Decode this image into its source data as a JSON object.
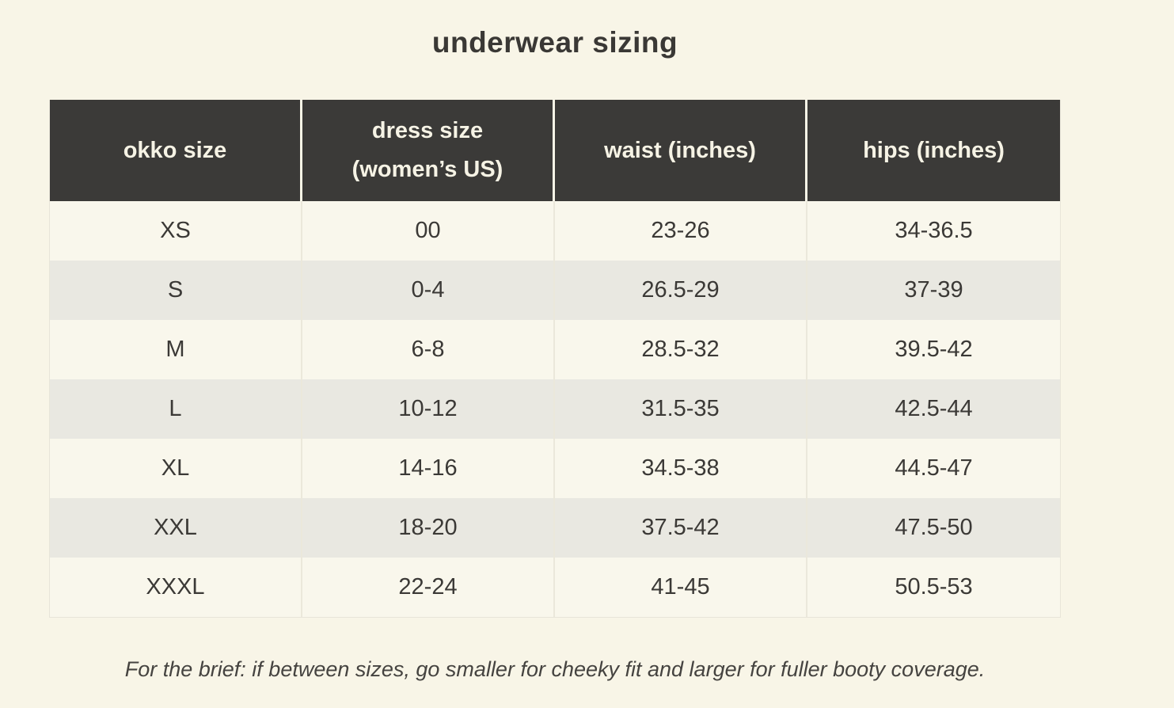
{
  "title": "underwear sizing",
  "footnote": "For the brief: if between sizes, go smaller for cheeky fit and larger for fuller booty coverage.",
  "colors": {
    "page_bg": "#f8f5e7",
    "header_bg": "#3b3a38",
    "header_text": "#f6f3e5",
    "row_light_bg": "#f9f7ec",
    "row_dark_bg": "#e9e8e1",
    "body_text": "#3b3936",
    "separator": "#ebe8db"
  },
  "table": {
    "keys": [
      "okko-size",
      "dress-size",
      "waist",
      "hips"
    ],
    "headers": [
      {
        "label": "okko size",
        "lines": [
          "okko size"
        ]
      },
      {
        "label": "dress size (women’s US)",
        "lines": [
          "dress size",
          "(women’s US)"
        ]
      },
      {
        "label": "waist (inches)",
        "lines": [
          "waist (inches)"
        ]
      },
      {
        "label": "hips (inches)",
        "lines": [
          "hips (inches)"
        ]
      }
    ],
    "rows": [
      [
        "XS",
        "00",
        "23-26",
        "34-36.5"
      ],
      [
        "S",
        "0-4",
        "26.5-29",
        "37-39"
      ],
      [
        "M",
        "6-8",
        "28.5-32",
        "39.5-42"
      ],
      [
        "L",
        "10-12",
        "31.5-35",
        "42.5-44"
      ],
      [
        "XL",
        "14-16",
        "34.5-38",
        "44.5-47"
      ],
      [
        "XXL",
        "18-20",
        "37.5-42",
        "47.5-50"
      ],
      [
        "XXXL",
        "22-24",
        "41-45",
        "50.5-53"
      ]
    ]
  },
  "chart_data": {
    "type": "table",
    "title": "underwear sizing",
    "columns": [
      "okko size",
      "dress size (women’s US)",
      "waist (inches)",
      "hips (inches)"
    ],
    "rows": [
      [
        "XS",
        "00",
        "23-26",
        "34-36.5"
      ],
      [
        "S",
        "0-4",
        "26.5-29",
        "37-39"
      ],
      [
        "M",
        "6-8",
        "28.5-32",
        "39.5-42"
      ],
      [
        "L",
        "10-12",
        "31.5-35",
        "42.5-44"
      ],
      [
        "XL",
        "14-16",
        "34.5-38",
        "44.5-47"
      ],
      [
        "XXL",
        "18-20",
        "37.5-42",
        "47.5-50"
      ],
      [
        "XXXL",
        "22-24",
        "41-45",
        "50.5-53"
      ]
    ],
    "note": "For the brief: if between sizes, go smaller for cheeky fit and larger for fuller booty coverage."
  }
}
